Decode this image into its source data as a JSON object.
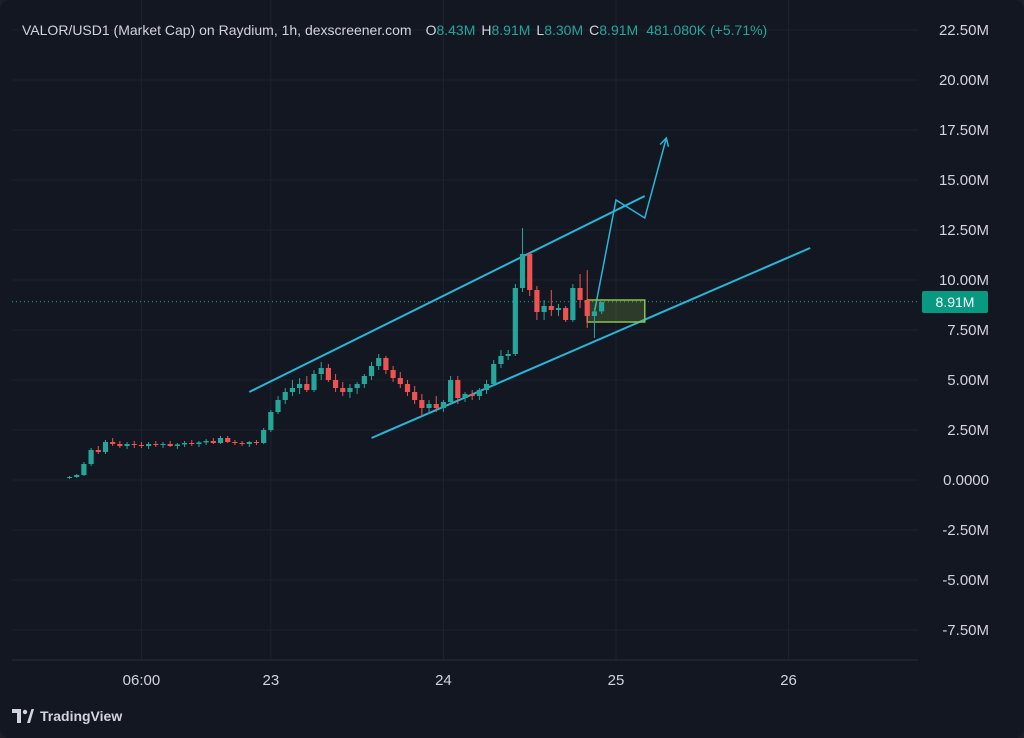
{
  "header": {
    "symbol": "VALOR/USD1 (Market Cap) on Raydium, 1h, dexscreener.com",
    "open_label": "O",
    "open": "8.43M",
    "high_label": "H",
    "high": "8.91M",
    "low_label": "L",
    "low": "8.30M",
    "close_label": "C",
    "close": "8.91M",
    "change": "481.080K (+5.71%)"
  },
  "last_price_label": "8.91M",
  "branding": "TradingView",
  "colors": {
    "up": "#26a69a",
    "down": "#ef5350",
    "channel": "#29b6d6",
    "highlight": "#8bc34a",
    "background": "#131722"
  },
  "chart_data": {
    "type": "candlestick",
    "y_ticks": [
      "22.50M",
      "20.00M",
      "17.50M",
      "15.00M",
      "12.50M",
      "10.00M",
      "7.50M",
      "5.00M",
      "2.50M",
      "0.0000",
      "-2.50M",
      "-5.00M",
      "-7.50M"
    ],
    "ylim": [
      -9.0,
      24.0
    ],
    "y_unit": "M",
    "x_ticks": [
      "06:00",
      "23",
      "24",
      "25",
      "26"
    ],
    "x_tick_hours": [
      6,
      24,
      48,
      72,
      96
    ],
    "xlim": [
      -12,
      114
    ],
    "last_price": 8.91,
    "candles": [
      [
        -4,
        0.1,
        0.2,
        0.05,
        0.15
      ],
      [
        -3,
        0.15,
        0.3,
        0.1,
        0.25
      ],
      [
        -2,
        0.25,
        0.9,
        0.2,
        0.8
      ],
      [
        -1,
        0.8,
        1.6,
        0.7,
        1.5
      ],
      [
        0,
        1.5,
        1.7,
        1.3,
        1.4
      ],
      [
        1,
        1.4,
        2.0,
        1.3,
        1.9
      ],
      [
        2,
        1.9,
        2.1,
        1.7,
        1.8
      ],
      [
        3,
        1.8,
        1.95,
        1.6,
        1.7
      ],
      [
        4,
        1.7,
        1.9,
        1.55,
        1.8
      ],
      [
        5,
        1.8,
        1.95,
        1.6,
        1.75
      ],
      [
        6,
        1.75,
        1.9,
        1.6,
        1.7
      ],
      [
        7,
        1.7,
        1.9,
        1.55,
        1.8
      ],
      [
        8,
        1.8,
        1.95,
        1.65,
        1.75
      ],
      [
        9,
        1.75,
        1.9,
        1.6,
        1.8
      ],
      [
        10,
        1.8,
        1.95,
        1.65,
        1.7
      ],
      [
        11,
        1.7,
        1.85,
        1.55,
        1.78
      ],
      [
        12,
        1.78,
        1.95,
        1.65,
        1.85
      ],
      [
        13,
        1.85,
        2.0,
        1.7,
        1.8
      ],
      [
        14,
        1.8,
        1.95,
        1.65,
        1.88
      ],
      [
        15,
        1.88,
        2.05,
        1.75,
        1.95
      ],
      [
        16,
        1.95,
        2.1,
        1.8,
        1.85
      ],
      [
        17,
        1.85,
        2.2,
        1.8,
        2.1
      ],
      [
        18,
        2.1,
        2.2,
        1.85,
        1.9
      ],
      [
        19,
        1.9,
        2.0,
        1.75,
        1.85
      ],
      [
        20,
        1.85,
        1.95,
        1.7,
        1.8
      ],
      [
        21,
        1.8,
        1.95,
        1.65,
        1.9
      ],
      [
        22,
        1.9,
        2.0,
        1.75,
        1.85
      ],
      [
        23,
        1.85,
        2.6,
        1.8,
        2.5
      ],
      [
        24,
        2.5,
        3.5,
        2.4,
        3.4
      ],
      [
        25,
        3.4,
        4.2,
        3.3,
        4.0
      ],
      [
        26,
        4.0,
        4.6,
        3.8,
        4.4
      ],
      [
        27,
        4.4,
        5.0,
        4.2,
        4.6
      ],
      [
        28,
        4.6,
        5.1,
        4.3,
        4.8
      ],
      [
        29,
        4.8,
        5.2,
        4.4,
        4.5
      ],
      [
        30,
        4.5,
        5.5,
        4.4,
        5.3
      ],
      [
        31,
        5.3,
        5.9,
        5.0,
        5.6
      ],
      [
        32,
        5.6,
        5.8,
        4.9,
        5.0
      ],
      [
        33,
        5.0,
        5.3,
        4.4,
        4.6
      ],
      [
        34,
        4.6,
        4.9,
        4.2,
        4.4
      ],
      [
        35,
        4.4,
        4.8,
        4.1,
        4.6
      ],
      [
        36,
        4.6,
        4.9,
        4.3,
        4.8
      ],
      [
        37,
        4.8,
        5.3,
        4.6,
        5.2
      ],
      [
        38,
        5.2,
        5.9,
        5.0,
        5.7
      ],
      [
        39,
        5.7,
        6.3,
        5.5,
        6.1
      ],
      [
        40,
        6.1,
        6.2,
        5.3,
        5.5
      ],
      [
        41,
        5.5,
        5.7,
        4.9,
        5.1
      ],
      [
        42,
        5.1,
        5.4,
        4.6,
        4.8
      ],
      [
        43,
        4.8,
        5.0,
        4.2,
        4.4
      ],
      [
        44,
        4.4,
        4.7,
        3.8,
        4.0
      ],
      [
        45,
        4.0,
        4.3,
        3.2,
        3.6
      ],
      [
        46,
        3.6,
        4.0,
        3.3,
        3.8
      ],
      [
        47,
        3.8,
        4.2,
        3.4,
        3.6
      ],
      [
        48,
        3.6,
        4.0,
        3.4,
        3.9
      ],
      [
        49,
        3.9,
        5.2,
        3.8,
        5.0
      ],
      [
        50,
        5.0,
        5.2,
        3.8,
        4.1
      ],
      [
        51,
        4.1,
        4.4,
        3.9,
        4.3
      ],
      [
        52,
        4.3,
        4.5,
        4.0,
        4.2
      ],
      [
        53,
        4.2,
        4.6,
        4.0,
        4.5
      ],
      [
        54,
        4.5,
        5.0,
        4.3,
        4.8
      ],
      [
        55,
        4.8,
        6.0,
        4.7,
        5.8
      ],
      [
        56,
        5.8,
        6.5,
        5.6,
        6.2
      ],
      [
        57,
        6.2,
        6.5,
        6.0,
        6.3
      ],
      [
        58,
        6.3,
        9.8,
        6.2,
        9.6
      ],
      [
        59,
        9.6,
        12.6,
        9.4,
        11.3
      ],
      [
        60,
        11.3,
        11.4,
        9.2,
        9.5
      ],
      [
        61,
        9.5,
        9.7,
        8.0,
        8.4
      ],
      [
        62,
        8.4,
        9.0,
        8.0,
        8.7
      ],
      [
        63,
        8.7,
        9.5,
        8.2,
        8.5
      ],
      [
        64,
        8.5,
        8.8,
        8.2,
        8.6
      ],
      [
        65,
        8.6,
        8.7,
        7.9,
        8.0
      ],
      [
        66,
        8.0,
        9.8,
        7.9,
        9.6
      ],
      [
        67,
        9.6,
        10.3,
        8.6,
        9.0
      ],
      [
        68,
        9.0,
        10.5,
        7.6,
        8.2
      ],
      [
        69,
        8.2,
        8.6,
        7.1,
        8.43
      ],
      [
        70,
        8.43,
        8.91,
        8.3,
        8.91
      ]
    ],
    "annotations": {
      "upper_channel": [
        [
          21,
          4.4
        ],
        [
          76,
          14.2
        ]
      ],
      "lower_channel": [
        [
          38,
          2.1
        ],
        [
          99,
          11.6
        ]
      ],
      "projection_path": [
        [
          69,
          8.4
        ],
        [
          72,
          14.0
        ],
        [
          76,
          13.1
        ],
        [
          79,
          17.1
        ]
      ],
      "highlight_box": [
        [
          68,
          7.9
        ],
        [
          76,
          9.0
        ]
      ]
    }
  }
}
